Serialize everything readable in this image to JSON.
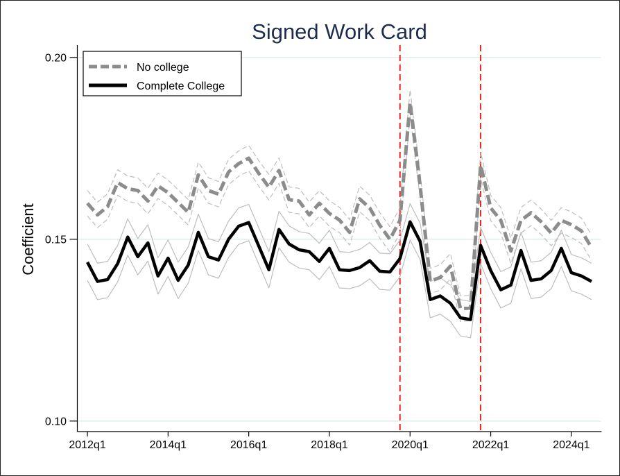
{
  "chart_data": {
    "type": "line",
    "title": "Signed Work Card",
    "ylabel": "Coefficient",
    "x": [
      "2012q1",
      "2012q2",
      "2012q3",
      "2012q4",
      "2013q1",
      "2013q2",
      "2013q3",
      "2013q4",
      "2014q1",
      "2014q2",
      "2014q3",
      "2014q4",
      "2015q1",
      "2015q2",
      "2015q3",
      "2015q4",
      "2016q1",
      "2016q2",
      "2016q3",
      "2016q4",
      "2017q1",
      "2017q2",
      "2017q3",
      "2017q4",
      "2018q1",
      "2018q2",
      "2018q3",
      "2018q4",
      "2019q1",
      "2019q2",
      "2019q3",
      "2019q4",
      "2020q1",
      "2020q2",
      "2020q3",
      "2020q4",
      "2021q1",
      "2021q2",
      "2021q3",
      "2021q4",
      "2022q1",
      "2022q2",
      "2022q3",
      "2022q4",
      "2023q1",
      "2023q2",
      "2023q3",
      "2023q4",
      "2024q1",
      "2024q2",
      "2024q3"
    ],
    "x_ticks": [
      "2012q1",
      "2014q1",
      "2016q1",
      "2018q1",
      "2020q1",
      "2022q1",
      "2024q1"
    ],
    "xlim": [
      "2011q4",
      "2024q4"
    ],
    "y_ticks": [
      0.1,
      0.15,
      0.2
    ],
    "y_tick_labels": [
      "0.10",
      "0.15",
      "0.20"
    ],
    "ylim": [
      0.0971,
      0.2034
    ],
    "grid": true,
    "legend": {
      "position": "top-left"
    },
    "series": [
      {
        "name": "No college",
        "color": "#8c8c8c",
        "dashed": true,
        "ci_color": "#bdbdbd",
        "values": [
          0.1599,
          0.1567,
          0.159,
          0.1656,
          0.1639,
          0.1634,
          0.1605,
          0.1647,
          0.1628,
          0.1601,
          0.1574,
          0.1677,
          0.1634,
          0.1624,
          0.1685,
          0.1708,
          0.1723,
          0.1681,
          0.1643,
          0.1689,
          0.1609,
          0.1605,
          0.1567,
          0.1599,
          0.1571,
          0.1553,
          0.1519,
          0.1611,
          0.1586,
          0.1538,
          0.15,
          0.1552,
          0.1876,
          0.1647,
          0.1385,
          0.1395,
          0.1426,
          0.1309,
          0.1311,
          0.1704,
          0.1586,
          0.1552,
          0.1468,
          0.1552,
          0.1573,
          0.1548,
          0.1517,
          0.1552,
          0.154,
          0.1523,
          0.1477
        ],
        "ci_upper": [
          0.1634,
          0.1602,
          0.1625,
          0.1691,
          0.1674,
          0.1669,
          0.164,
          0.1682,
          0.1663,
          0.1636,
          0.1609,
          0.1712,
          0.1669,
          0.1659,
          0.172,
          0.1743,
          0.1758,
          0.1716,
          0.1678,
          0.1724,
          0.1644,
          0.164,
          0.1602,
          0.1634,
          0.1606,
          0.1588,
          0.1554,
          0.1646,
          0.1621,
          0.1573,
          0.1535,
          0.1587,
          0.1911,
          0.1682,
          0.142,
          0.143,
          0.1461,
          0.1344,
          0.1346,
          0.1739,
          0.1621,
          0.1587,
          0.1503,
          0.1587,
          0.1608,
          0.1583,
          0.1552,
          0.1587,
          0.1575,
          0.1558,
          0.1512
        ],
        "ci_lower": [
          0.1564,
          0.1532,
          0.1555,
          0.1621,
          0.1604,
          0.1599,
          0.157,
          0.1612,
          0.1593,
          0.1566,
          0.1539,
          0.1642,
          0.1599,
          0.1589,
          0.165,
          0.1673,
          0.1688,
          0.1646,
          0.1608,
          0.1654,
          0.1574,
          0.157,
          0.1532,
          0.1564,
          0.1536,
          0.1518,
          0.1484,
          0.1576,
          0.1551,
          0.1503,
          0.1465,
          0.1517,
          0.1841,
          0.1612,
          0.135,
          0.136,
          0.1391,
          0.1274,
          0.1276,
          0.1669,
          0.1551,
          0.1517,
          0.1433,
          0.1517,
          0.1538,
          0.1513,
          0.1482,
          0.1517,
          0.1505,
          0.1488,
          0.1442
        ]
      },
      {
        "name": "Complete College",
        "color": "#000000",
        "dashed": false,
        "ci_color": "#bdbdbd",
        "values": [
          0.1437,
          0.1384,
          0.1389,
          0.1433,
          0.1506,
          0.1452,
          0.149,
          0.1399,
          0.1448,
          0.1387,
          0.1429,
          0.1519,
          0.1452,
          0.1443,
          0.15,
          0.1536,
          0.1546,
          0.1481,
          0.1416,
          0.1527,
          0.1487,
          0.1471,
          0.1466,
          0.1439,
          0.1475,
          0.1416,
          0.1414,
          0.1422,
          0.1441,
          0.1412,
          0.141,
          0.1447,
          0.1548,
          0.1494,
          0.1334,
          0.1344,
          0.1324,
          0.1284,
          0.1279,
          0.1483,
          0.1414,
          0.1361,
          0.1374,
          0.1469,
          0.1387,
          0.1391,
          0.1414,
          0.1475,
          0.1408,
          0.1399,
          0.1384
        ],
        "ci_upper": [
          0.1487,
          0.1434,
          0.1439,
          0.1483,
          0.1556,
          0.1502,
          0.154,
          0.1449,
          0.1498,
          0.1437,
          0.1479,
          0.1569,
          0.1502,
          0.1493,
          0.155,
          0.1586,
          0.1596,
          0.1531,
          0.1466,
          0.1577,
          0.1537,
          0.1521,
          0.1516,
          0.1489,
          0.1525,
          0.1466,
          0.1464,
          0.1472,
          0.1491,
          0.1462,
          0.146,
          0.1497,
          0.1598,
          0.1544,
          0.1384,
          0.1394,
          0.1374,
          0.1334,
          0.1329,
          0.1533,
          0.1464,
          0.1411,
          0.1424,
          0.1519,
          0.1437,
          0.1441,
          0.1464,
          0.1525,
          0.1458,
          0.1449,
          0.1434
        ],
        "ci_lower": [
          0.1387,
          0.1334,
          0.1339,
          0.1383,
          0.1456,
          0.1402,
          0.144,
          0.1349,
          0.1398,
          0.1337,
          0.1379,
          0.1469,
          0.1402,
          0.1393,
          0.145,
          0.1486,
          0.1496,
          0.1431,
          0.1366,
          0.1477,
          0.1437,
          0.1421,
          0.1416,
          0.1389,
          0.1425,
          0.1366,
          0.1364,
          0.1372,
          0.1391,
          0.1362,
          0.136,
          0.1397,
          0.1498,
          0.1444,
          0.1284,
          0.1294,
          0.1274,
          0.1234,
          0.1229,
          0.1433,
          0.1364,
          0.1311,
          0.1324,
          0.1419,
          0.1337,
          0.1341,
          0.1364,
          0.1425,
          0.1358,
          0.1349,
          0.1334
        ]
      }
    ],
    "reference_lines": [
      {
        "x": "2019q4",
        "color": "#e8261f",
        "dashed": true
      },
      {
        "x": "2021q4",
        "color": "#e8261f",
        "dashed": true
      }
    ]
  }
}
